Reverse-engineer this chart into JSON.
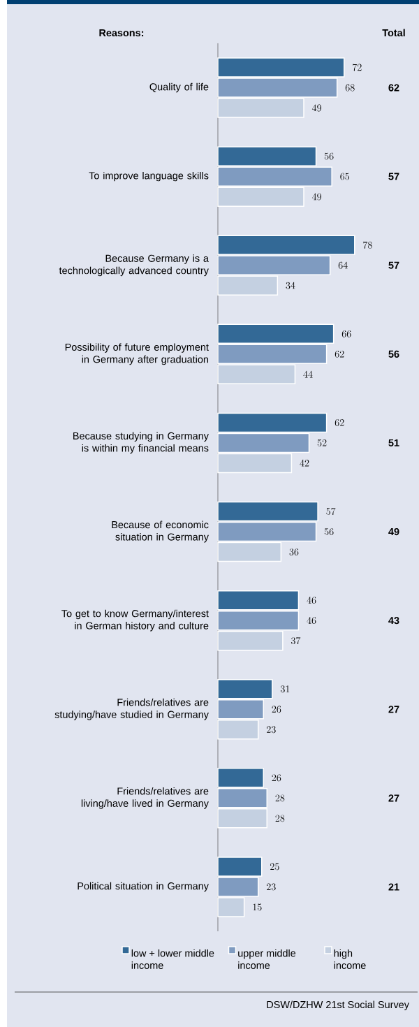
{
  "chart_data": {
    "type": "bar",
    "orientation": "horizontal",
    "ylabel": "Reasons:",
    "categories": [
      "Quality of life",
      "To improve language skills",
      "Because Germany is a technologically advanced country",
      "Possibility of future employment in Germany after graduation",
      "Because studying in Germany is within my financial means",
      "Because of economic situation in Germany",
      "To get to know Germany/interest in German history and culture",
      "Friends/relatives are studying/have studied in Germany",
      "Friends/relatives are living/have lived in Germany",
      "Political situation in Germany"
    ],
    "series": [
      {
        "name": "low + lower middle income",
        "color": "#336996",
        "values": [
          72,
          56,
          78,
          66,
          62,
          57,
          46,
          31,
          26,
          25
        ]
      },
      {
        "name": "upper middle income",
        "color": "#7f9bc0",
        "values": [
          68,
          65,
          64,
          62,
          52,
          56,
          46,
          26,
          28,
          23
        ]
      },
      {
        "name": "high income",
        "color": "#c4d0e1",
        "values": [
          49,
          49,
          34,
          44,
          42,
          36,
          37,
          23,
          28,
          15
        ]
      }
    ],
    "data_labels": true,
    "legend": "bottom",
    "annotations": [
      "Total",
      "62",
      "57",
      "57",
      "56",
      "51",
      "49",
      "43",
      "27",
      "27",
      "21",
      "DSW/DZHW 21st Social Survey"
    ]
  }
}
